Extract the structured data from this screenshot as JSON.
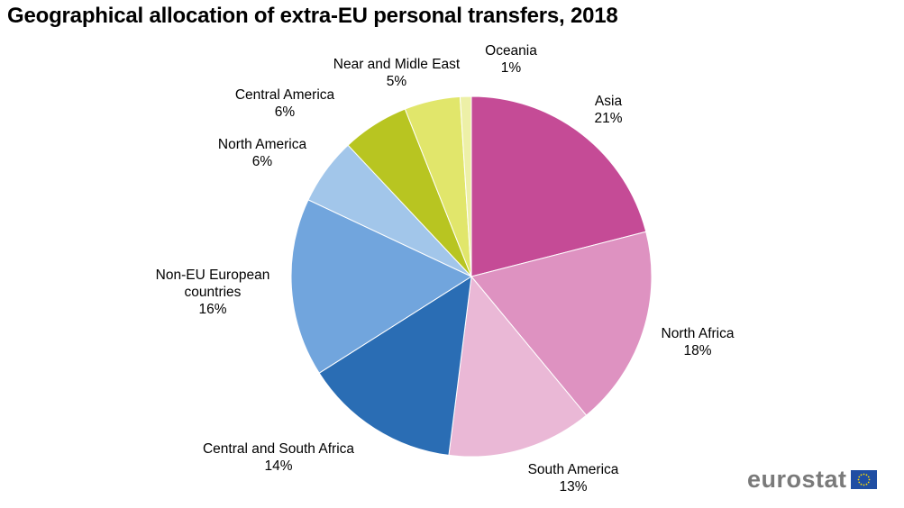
{
  "title": "Geographical allocation of extra-EU personal transfers, 2018",
  "logo": {
    "text": "eurostat",
    "icon": "eu-flag-icon"
  },
  "chart_data": {
    "type": "pie",
    "title": "Geographical allocation of extra-EU personal transfers, 2018",
    "start_angle": "12 o'clock",
    "direction": "clockwise",
    "slices": [
      {
        "label": "Asia",
        "value": 21,
        "display": "21%",
        "color": "#c54b96"
      },
      {
        "label": "North Africa",
        "value": 18,
        "display": "18%",
        "color": "#de92c1"
      },
      {
        "label": "South America",
        "value": 13,
        "display": "13%",
        "color": "#eab8d6"
      },
      {
        "label": "Central and South Africa",
        "value": 14,
        "display": "14%",
        "color": "#2a6db4"
      },
      {
        "label": "Non-EU European countries",
        "value": 16,
        "display": "16%",
        "color": "#71a5dd"
      },
      {
        "label": "North America",
        "value": 6,
        "display": "6%",
        "color": "#a2c6ea"
      },
      {
        "label": "Central America",
        "value": 6,
        "display": "6%",
        "color": "#b8c521"
      },
      {
        "label": "Near and Midle East",
        "value": 5,
        "display": "5%",
        "color": "#e1e66b"
      },
      {
        "label": "Oceania",
        "value": 1,
        "display": "1%",
        "color": "#edf0a7"
      }
    ]
  },
  "labels": {
    "asia": {
      "name": "Asia",
      "pct": "21%"
    },
    "north_africa": {
      "name": "North Africa",
      "pct": "18%"
    },
    "south_america": {
      "name": "South America",
      "pct": "13%"
    },
    "cs_africa": {
      "name": "Central and South Africa",
      "pct": "14%"
    },
    "non_eu": {
      "name1": "Non-EU European",
      "name2": "countries",
      "pct": "16%"
    },
    "north_america": {
      "name": "North America",
      "pct": "6%"
    },
    "central_america": {
      "name": "Central America",
      "pct": "6%"
    },
    "near_east": {
      "name": "Near and Midle East",
      "pct": "5%"
    },
    "oceania": {
      "name": "Oceania",
      "pct": "1%"
    }
  }
}
